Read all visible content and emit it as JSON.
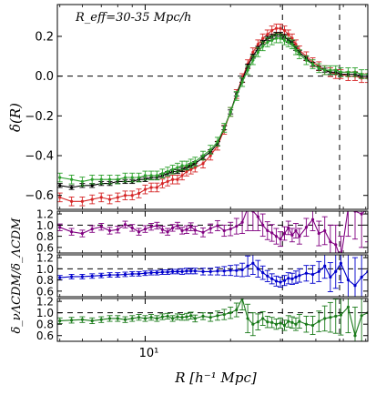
{
  "chart_data": [
    {
      "type": "line",
      "panel": "main",
      "annotation": "R_eff=30-35 Mpc/h",
      "ylabel": "δ(R)",
      "xscale": "log",
      "xlim": [
        4.9,
        61
      ],
      "ylim": [
        -0.67,
        0.36
      ],
      "yticks": [
        -0.6,
        -0.4,
        -0.2,
        0.0,
        0.2
      ],
      "yticklabels": [
        "−0.6",
        "−0.4",
        "−0.2",
        "0.0",
        "0.2"
      ],
      "hlines": [
        0.0
      ],
      "vlines": [
        30.5,
        48.5
      ],
      "grid": false,
      "x": [
        5.0,
        5.5,
        6.0,
        6.5,
        7.0,
        7.5,
        8.0,
        8.5,
        9.0,
        9.5,
        10.0,
        10.5,
        11.0,
        11.5,
        12.0,
        12.5,
        13.0,
        13.5,
        14.0,
        14.5,
        15.0,
        16.0,
        17.0,
        18.0,
        19.0,
        20.0,
        21.0,
        22.0,
        23.0,
        24.0,
        25.0,
        26.0,
        27.0,
        28.0,
        29.0,
        30.0,
        31.0,
        32.0,
        33.0,
        34.0,
        35.0,
        37.0,
        39.0,
        41.0,
        43.0,
        45.0,
        47.0,
        49.0,
        52.0,
        55.0,
        58.0,
        61.0
      ],
      "series": [
        {
          "color": "#d62728",
          "values": [
            -0.61,
            -0.63,
            -0.63,
            -0.62,
            -0.61,
            -0.62,
            -0.61,
            -0.6,
            -0.6,
            -0.59,
            -0.57,
            -0.56,
            -0.56,
            -0.54,
            -0.53,
            -0.52,
            -0.52,
            -0.5,
            -0.48,
            -0.47,
            -0.46,
            -0.44,
            -0.4,
            -0.35,
            -0.27,
            -0.18,
            -0.09,
            -0.01,
            0.06,
            0.12,
            0.16,
            0.19,
            0.21,
            0.23,
            0.24,
            0.24,
            0.23,
            0.21,
            0.19,
            0.16,
            0.13,
            0.1,
            0.07,
            0.05,
            0.03,
            0.02,
            0.01,
            0.01,
            0.0,
            0.0,
            -0.01,
            -0.01
          ],
          "err": 0.022
        },
        {
          "color": "#000000",
          "values": [
            -0.55,
            -0.56,
            -0.55,
            -0.55,
            -0.54,
            -0.54,
            -0.53,
            -0.53,
            -0.53,
            -0.52,
            -0.52,
            -0.51,
            -0.51,
            -0.5,
            -0.49,
            -0.48,
            -0.48,
            -0.47,
            -0.46,
            -0.45,
            -0.44,
            -0.41,
            -0.38,
            -0.34,
            -0.26,
            -0.18,
            -0.09,
            -0.02,
            0.05,
            0.1,
            0.14,
            0.17,
            0.19,
            0.2,
            0.21,
            0.21,
            0.2,
            0.18,
            0.17,
            0.14,
            0.12,
            0.09,
            0.06,
            0.04,
            0.03,
            0.02,
            0.02,
            0.01,
            0.01,
            0.01,
            0.0,
            0.0
          ],
          "err": 0.01
        },
        {
          "color": "#2ca02c",
          "values": [
            -0.51,
            -0.52,
            -0.53,
            -0.52,
            -0.52,
            -0.52,
            -0.52,
            -0.51,
            -0.51,
            -0.51,
            -0.5,
            -0.5,
            -0.5,
            -0.49,
            -0.48,
            -0.47,
            -0.46,
            -0.45,
            -0.45,
            -0.44,
            -0.43,
            -0.4,
            -0.37,
            -0.33,
            -0.26,
            -0.18,
            -0.1,
            -0.03,
            0.03,
            0.08,
            0.12,
            0.15,
            0.17,
            0.18,
            0.19,
            0.19,
            0.18,
            0.17,
            0.16,
            0.13,
            0.11,
            0.08,
            0.06,
            0.04,
            0.03,
            0.03,
            0.03,
            0.02,
            0.02,
            0.02,
            0.01,
            0.01
          ],
          "err": 0.022
        }
      ]
    },
    {
      "type": "line",
      "panel": "ratio-1",
      "xscale": "log",
      "xlim": [
        4.9,
        61
      ],
      "ylim": [
        0.5,
        1.25
      ],
      "yticks": [
        0.6,
        0.8,
        1.0,
        1.2
      ],
      "yticklabels": [
        "0.6",
        "0.8",
        "1.0",
        "1.2"
      ],
      "hlines": [
        1.0
      ],
      "vlines": [
        30.5,
        48.5
      ],
      "series": [
        {
          "color": "#800080",
          "values": [
            0.96,
            0.88,
            0.85,
            0.93,
            0.97,
            0.9,
            0.92,
            1.01,
            0.95,
            0.88,
            0.93,
            0.97,
            0.99,
            0.92,
            0.88,
            0.95,
            0.99,
            0.9,
            0.92,
            0.97,
            0.91,
            0.87,
            0.94,
            0.99,
            0.9,
            0.93,
            0.98,
            1.05,
            1.3,
            1.25,
            1.15,
            1.0,
            0.9,
            0.86,
            0.8,
            0.75,
            0.85,
            0.95,
            0.82,
            0.9,
            0.8,
            0.96,
            1.1,
            0.85,
            0.9,
            0.7,
            0.65,
            0.4,
            1.3,
            1.25,
            1.2,
            1.3
          ],
          "err": [
            0.06,
            0.06,
            0.06,
            0.06,
            0.06,
            0.06,
            0.06,
            0.06,
            0.06,
            0.06,
            0.06,
            0.06,
            0.06,
            0.06,
            0.06,
            0.06,
            0.06,
            0.06,
            0.07,
            0.07,
            0.07,
            0.08,
            0.08,
            0.09,
            0.1,
            0.12,
            0.14,
            0.2,
            0.4,
            0.35,
            0.25,
            0.2,
            0.16,
            0.15,
            0.14,
            0.13,
            0.12,
            0.12,
            0.12,
            0.13,
            0.14,
            0.16,
            0.2,
            0.22,
            0.25,
            0.3,
            0.35,
            0.4,
            0.5,
            0.5,
            0.6,
            0.6
          ]
        }
      ]
    },
    {
      "type": "line",
      "panel": "ratio-2",
      "ylabel": "δ_νΛCDM/δ_ΛCDM",
      "xscale": "log",
      "xlim": [
        4.9,
        61
      ],
      "ylim": [
        0.5,
        1.25
      ],
      "yticks": [
        0.6,
        0.8,
        1.0,
        1.2
      ],
      "yticklabels": [
        "0.6",
        "0.8",
        "1.0",
        "1.2"
      ],
      "hlines": [
        1.0
      ],
      "vlines": [
        30.5,
        48.5
      ],
      "series": [
        {
          "color": "#0000cc",
          "values": [
            0.84,
            0.86,
            0.86,
            0.87,
            0.88,
            0.89,
            0.89,
            0.9,
            0.91,
            0.91,
            0.92,
            0.93,
            0.93,
            0.94,
            0.94,
            0.95,
            0.95,
            0.95,
            0.96,
            0.96,
            0.96,
            0.95,
            0.95,
            0.96,
            0.96,
            0.97,
            0.97,
            0.98,
            1.05,
            1.1,
            1.0,
            0.93,
            0.87,
            0.82,
            0.78,
            0.76,
            0.79,
            0.83,
            0.82,
            0.85,
            0.88,
            0.92,
            0.9,
            0.95,
            1.05,
            0.85,
            0.95,
            1.1,
            0.8,
            0.7,
            0.85,
            0.95
          ],
          "err": [
            0.04,
            0.04,
            0.04,
            0.04,
            0.04,
            0.04,
            0.04,
            0.04,
            0.04,
            0.04,
            0.04,
            0.04,
            0.04,
            0.04,
            0.04,
            0.04,
            0.04,
            0.05,
            0.05,
            0.05,
            0.05,
            0.06,
            0.06,
            0.07,
            0.08,
            0.09,
            0.1,
            0.12,
            0.18,
            0.2,
            0.15,
            0.12,
            0.1,
            0.09,
            0.09,
            0.09,
            0.09,
            0.1,
            0.1,
            0.11,
            0.12,
            0.14,
            0.16,
            0.18,
            0.22,
            0.26,
            0.3,
            0.35,
            0.45,
            0.5,
            0.55,
            0.55
          ]
        }
      ]
    },
    {
      "type": "line",
      "panel": "ratio-3",
      "xlabel": "R [h⁻¹ Mpc]",
      "xscale": "log",
      "xlim": [
        4.9,
        61
      ],
      "xticks": [
        10
      ],
      "xticklabels": [
        "10¹"
      ],
      "ylim": [
        0.5,
        1.25
      ],
      "yticks": [
        0.6,
        0.8,
        1.0,
        1.2
      ],
      "yticklabels": [
        "0.6",
        "0.8",
        "1.0",
        "1.2"
      ],
      "hlines": [
        1.0
      ],
      "vlines": [
        30.5,
        48.5
      ],
      "series": [
        {
          "color": "#1a7a1a",
          "values": [
            0.86,
            0.87,
            0.88,
            0.86,
            0.88,
            0.9,
            0.9,
            0.88,
            0.9,
            0.92,
            0.9,
            0.92,
            0.9,
            0.93,
            0.94,
            0.9,
            0.93,
            0.92,
            0.93,
            0.95,
            0.9,
            0.94,
            0.92,
            0.95,
            0.97,
            1.0,
            1.05,
            1.25,
            0.9,
            0.8,
            0.84,
            0.9,
            0.84,
            0.83,
            0.8,
            0.82,
            0.78,
            0.85,
            0.83,
            0.8,
            0.85,
            0.8,
            0.78,
            0.85,
            0.9,
            0.92,
            0.94,
            0.96,
            1.1,
            0.6,
            0.95,
            1.0
          ],
          "err": [
            0.05,
            0.05,
            0.05,
            0.05,
            0.05,
            0.05,
            0.05,
            0.05,
            0.05,
            0.05,
            0.05,
            0.05,
            0.05,
            0.05,
            0.05,
            0.05,
            0.05,
            0.05,
            0.06,
            0.06,
            0.06,
            0.06,
            0.07,
            0.08,
            0.09,
            0.1,
            0.12,
            0.2,
            0.25,
            0.2,
            0.14,
            0.12,
            0.1,
            0.09,
            0.09,
            0.09,
            0.09,
            0.1,
            0.1,
            0.11,
            0.12,
            0.14,
            0.16,
            0.18,
            0.22,
            0.26,
            0.3,
            0.35,
            0.45,
            0.5,
            0.55,
            0.55
          ]
        }
      ]
    }
  ]
}
